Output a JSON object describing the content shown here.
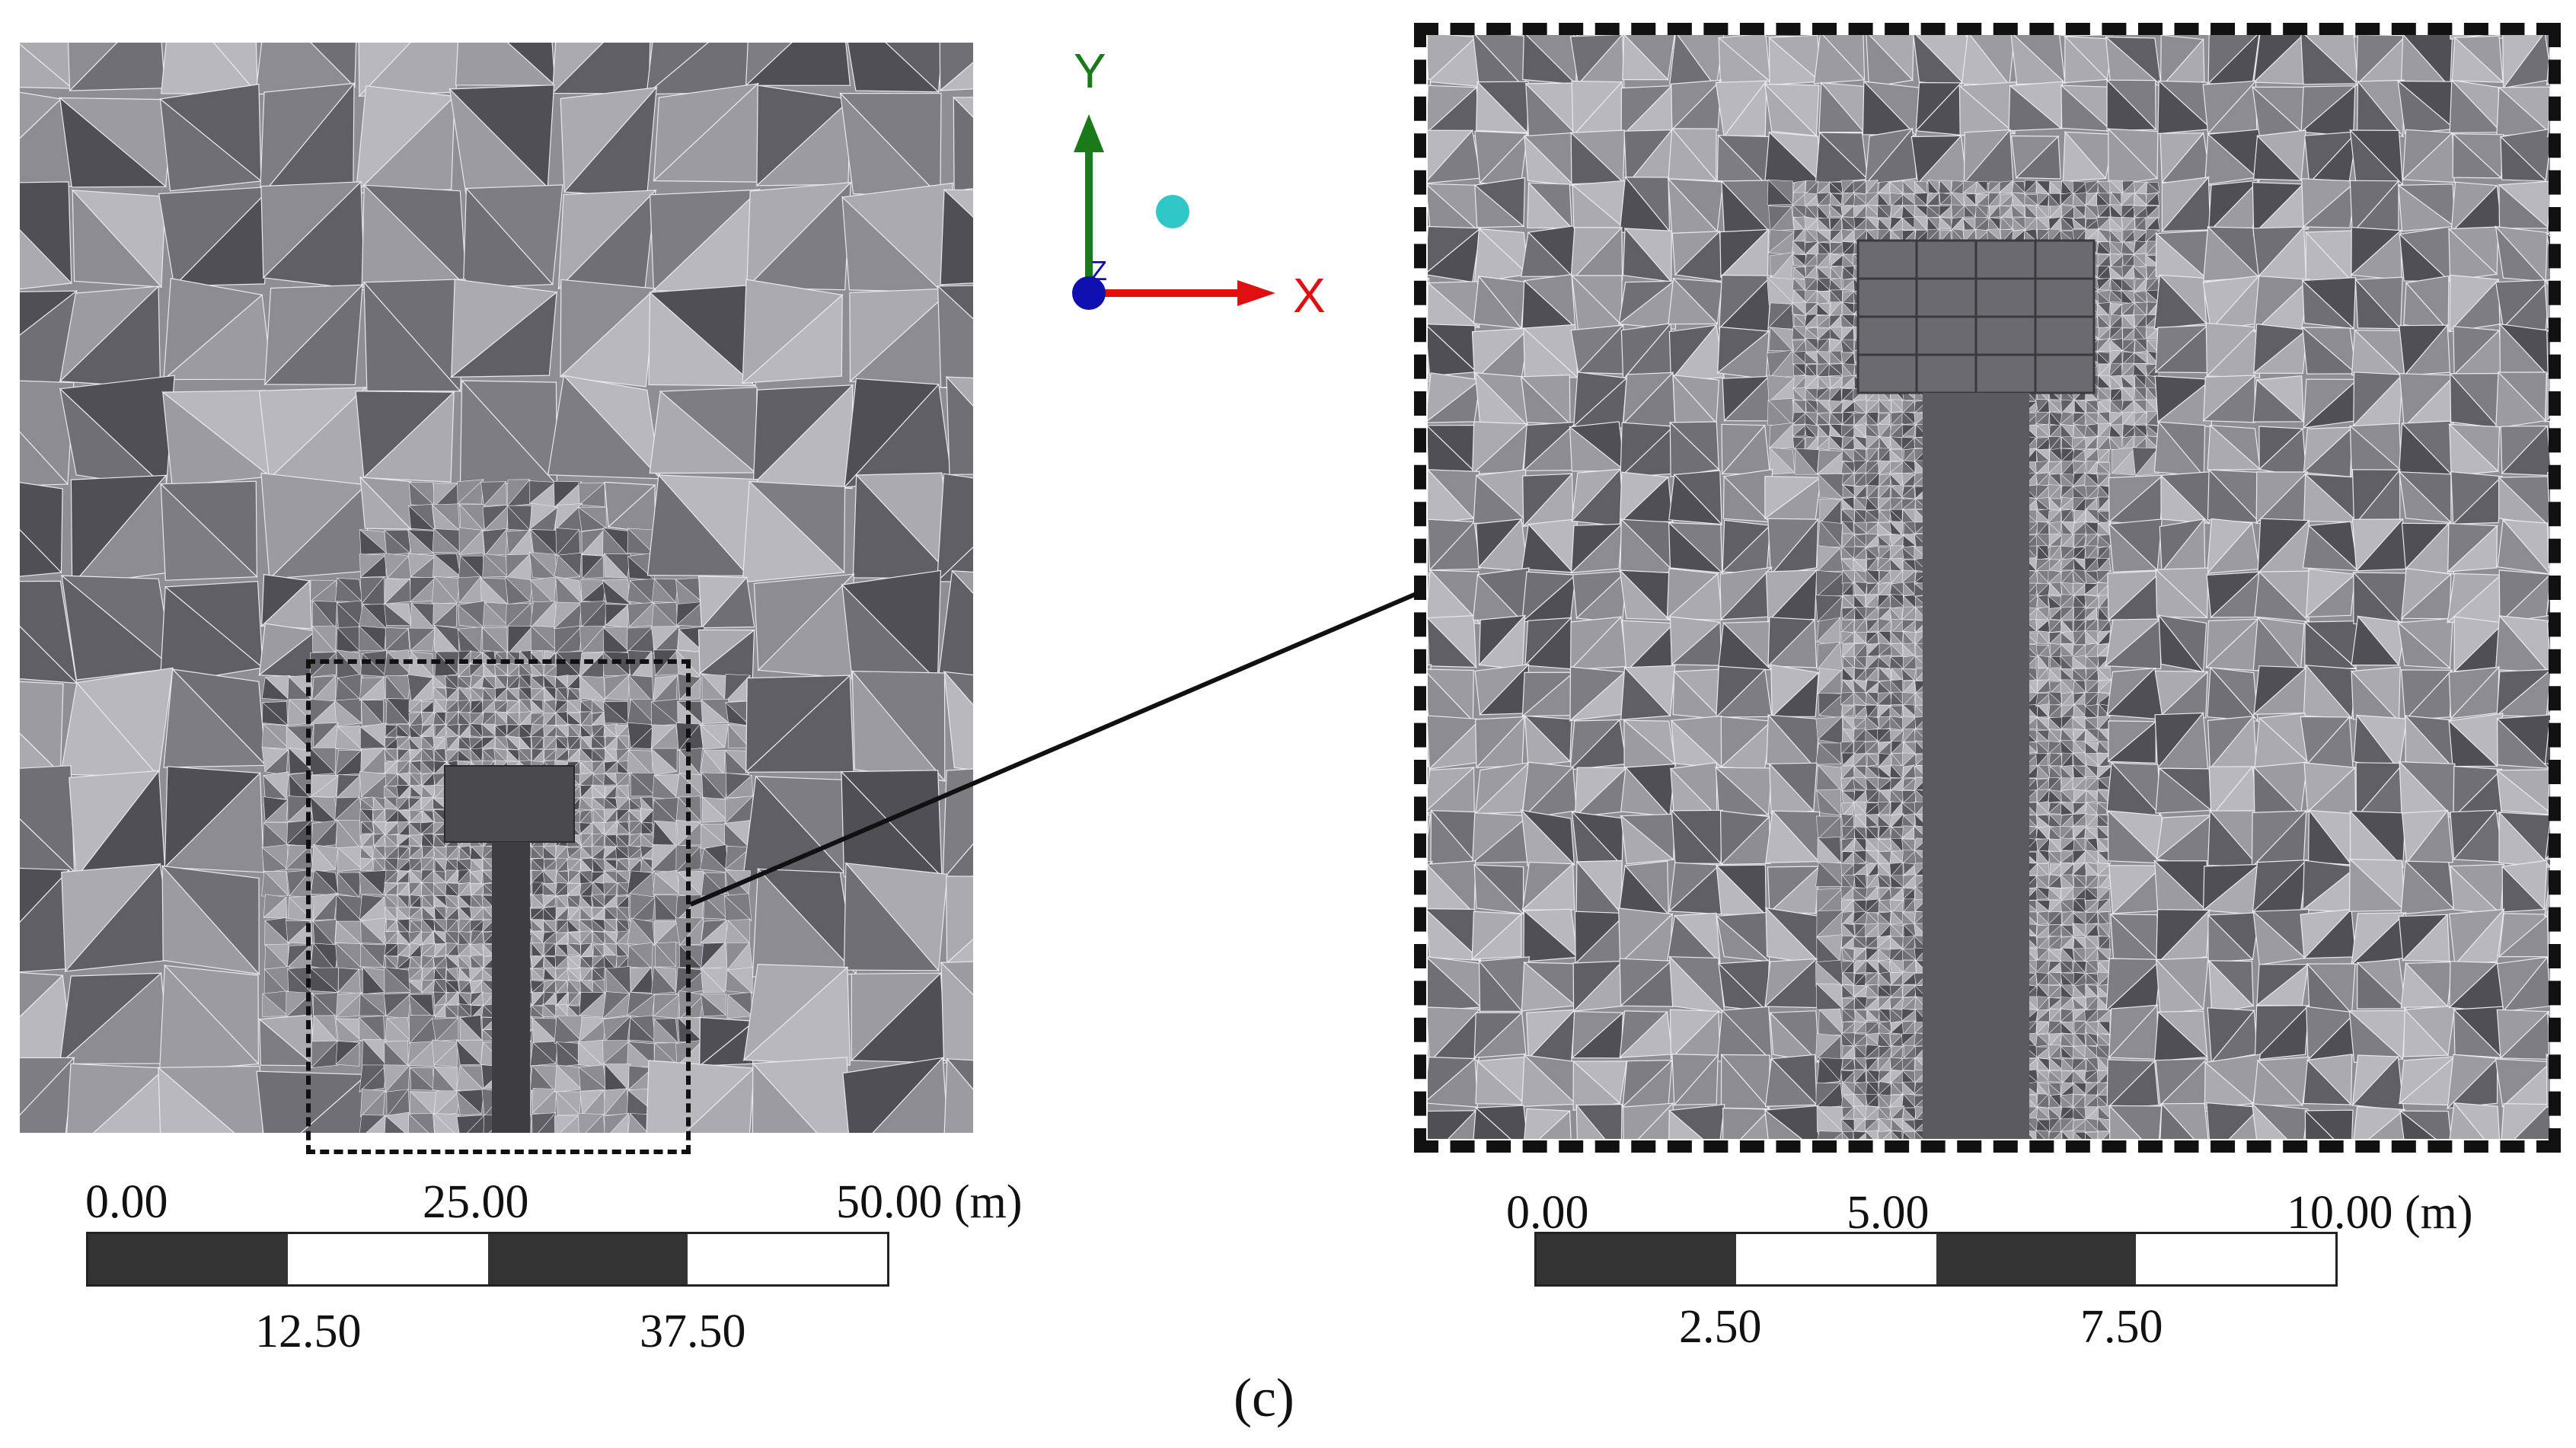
{
  "axes": {
    "y_label": "Y",
    "x_label": "X",
    "z_label": "Z",
    "y_color": "#1a7a1a",
    "x_color": "#e01010",
    "z_color": "#1010b0",
    "sphere_color": "#2fc7c7"
  },
  "mesh_colors": [
    "#6f6f75",
    "#7d7d83",
    "#8c8c92",
    "#9b9ba1",
    "#aaaab0",
    "#b8b8be",
    "#5f5f65",
    "#4f4f55"
  ],
  "scale_left": {
    "top_labels": [
      "0.00",
      "25.00",
      "50.00 (m)"
    ],
    "bottom_labels": [
      "12.50",
      "37.50"
    ]
  },
  "scale_right": {
    "top_labels": [
      "0.00",
      "5.00",
      "10.00 (m)"
    ],
    "bottom_labels": [
      "2.50",
      "7.50"
    ]
  },
  "caption": "(c)"
}
